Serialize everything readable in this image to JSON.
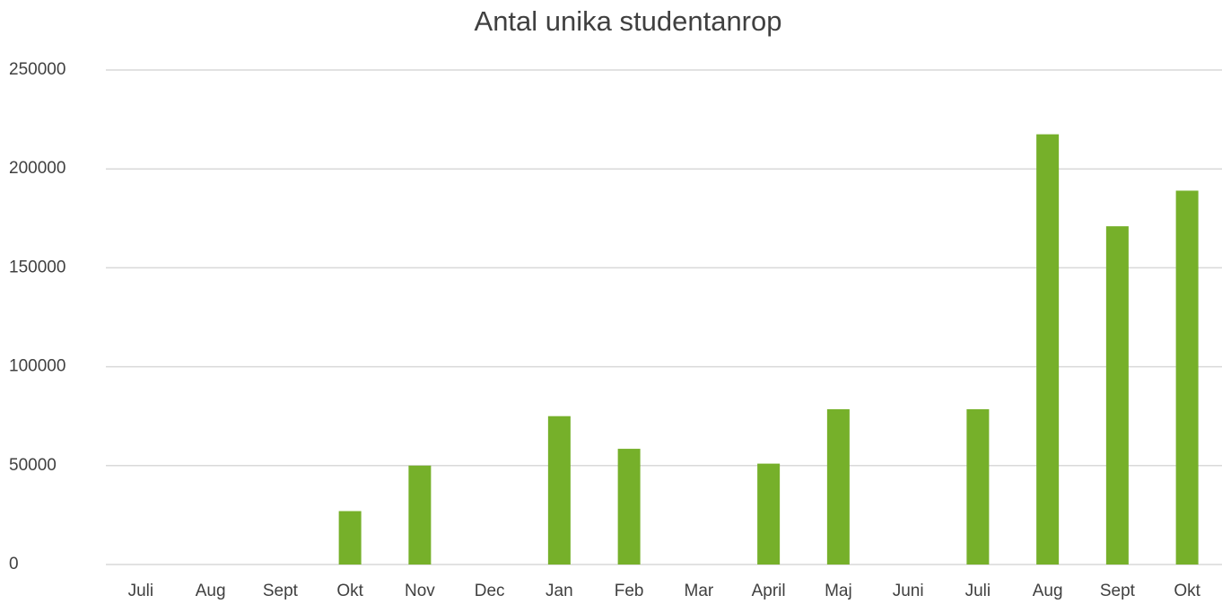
{
  "chart_data": {
    "type": "bar",
    "title": "Antal unika studentanrop",
    "categories": [
      "Juli",
      "Aug",
      "Sept",
      "Okt",
      "Nov",
      "Dec",
      "Jan",
      "Feb",
      "Mar",
      "April",
      "Maj",
      "Juni",
      "Juli",
      "Aug",
      "Sept",
      "Okt"
    ],
    "values": [
      null,
      null,
      null,
      27000,
      50000,
      null,
      75000,
      58500,
      null,
      51000,
      78500,
      null,
      78500,
      217500,
      171000,
      189000
    ],
    "color": "#76b02a",
    "ylim": [
      0,
      250000
    ],
    "yticks": [
      0,
      50000,
      100000,
      150000,
      200000,
      250000
    ],
    "grid": true
  }
}
